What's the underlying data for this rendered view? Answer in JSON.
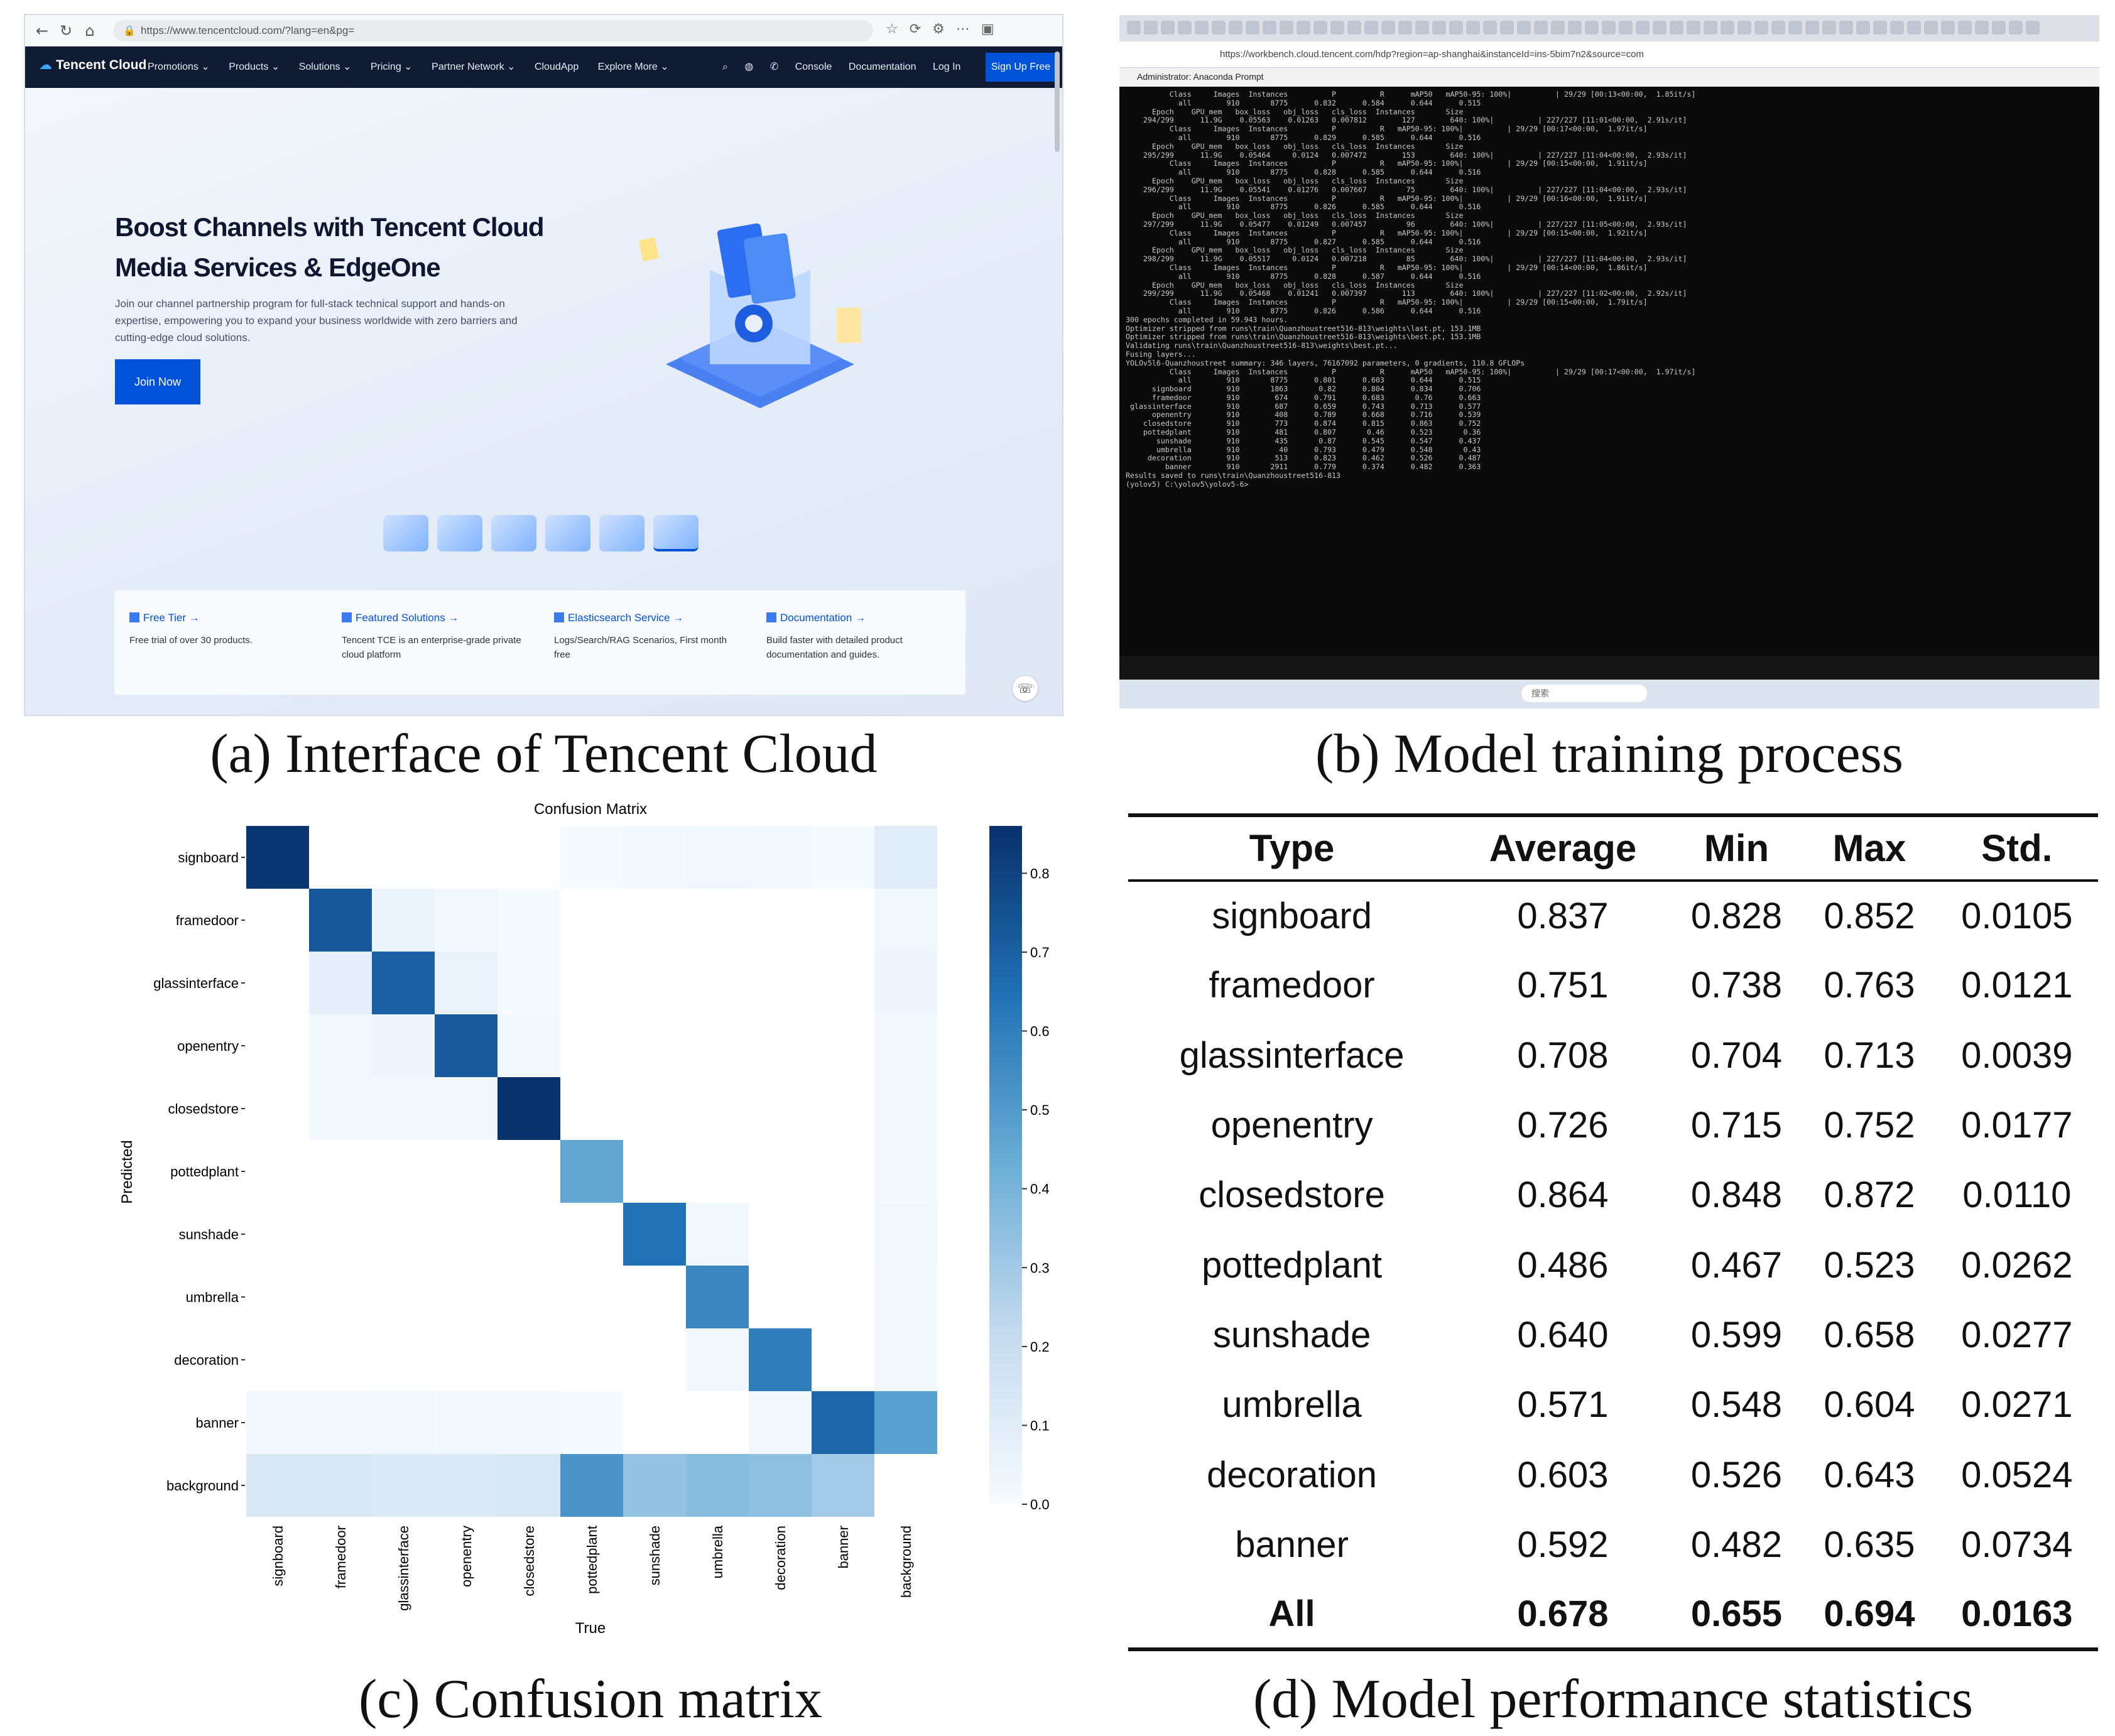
{
  "captions": {
    "a": "(a) Interface of Tencent Cloud",
    "b": "(b) Model training process",
    "c": "(c) Confusion matrix",
    "d": "(d) Model performance statistics"
  },
  "tencent": {
    "url": "https://www.tencentcloud.com/?lang=en&pg=",
    "brand": "Tencent Cloud",
    "nav": [
      "Promotions ⌄",
      "Products ⌄",
      "Solutions ⌄",
      "Pricing ⌄",
      "Partner Network ⌄",
      "CloudApp",
      "Explore More ⌄"
    ],
    "nav_right": [
      "Console",
      "Documentation",
      "Log In"
    ],
    "signup": "Sign Up Free",
    "hero_title": "Boost Channels with Tencent Cloud Media Services & EdgeOne",
    "hero_desc": "Join our channel partnership program for full-stack technical support and hands-on expertise, empowering you to expand your business worldwide with zero barriers and cutting-edge cloud solutions.",
    "join": "Join Now",
    "features": [
      {
        "title": "Free Tier →",
        "desc": "Free trial of over 30 products."
      },
      {
        "title": "Featured Solutions →",
        "desc": "Tencent TCE is an enterprise-grade private cloud platform"
      },
      {
        "title": "Elasticsearch Service →",
        "desc": "Logs/Search/RAG Scenarios, First month free"
      },
      {
        "title": "Documentation →",
        "desc": "Build faster with detailed product documentation and guides."
      }
    ]
  },
  "training": {
    "url": "https://workbench.cloud.tencent.com/hdp?region=ap-shanghai&instanceId=ins-5bim7n2&source=com",
    "window_title": "Administrator: Anaconda Prompt",
    "search_placeholder": "搜索",
    "log_lines": [
      "          Class     Images  Instances          P          R      mAP50   mAP50-95: 100%|          | 29/29 [00:13<00:00,  1.85it/s]",
      "            all        910       8775      0.832      0.584      0.644      0.515",
      "",
      "      Epoch    GPU_mem   box_loss   obj_loss   cls_loss  Instances       Size",
      "    294/299      11.9G    0.05563    0.01263   0.007812        127        640: 100%|          | 227/227 [11:01<00:00,  2.91s/it]",
      "          Class     Images  Instances          P          R   mAP50-95: 100%|          | 29/29 [00:17<00:00,  1.97it/s]",
      "            all        910       8775      0.829      0.585      0.644      0.516",
      "",
      "      Epoch    GPU_mem   box_loss   obj_loss   cls_loss  Instances       Size",
      "    295/299      11.9G    0.05464     0.0124   0.007472        153        640: 100%|          | 227/227 [11:04<00:00,  2.93s/it]",
      "          Class     Images  Instances          P          R   mAP50-95: 100%|          | 29/29 [00:15<00:00,  1.91it/s]",
      "            all        910       8775      0.828      0.585      0.644      0.516",
      "",
      "      Epoch    GPU_mem   box_loss   obj_loss   cls_loss  Instances       Size",
      "    296/299      11.9G    0.05541    0.01276   0.007667         75        640: 100%|          | 227/227 [11:04<00:00,  2.93s/it]",
      "          Class     Images  Instances          P          R   mAP50-95: 100%|          | 29/29 [00:16<00:00,  1.91it/s]",
      "            all        910       8775      0.826      0.585      0.644      0.516",
      "",
      "      Epoch    GPU_mem   box_loss   obj_loss   cls_loss  Instances       Size",
      "    297/299      11.9G    0.05477    0.01249   0.007457         96        640: 100%|          | 227/227 [11:05<00:00,  2.93s/it]",
      "          Class     Images  Instances          P          R   mAP50-95: 100%|          | 29/29 [00:15<00:00,  1.92it/s]",
      "            all        910       8775      0.827      0.585      0.644      0.516",
      "",
      "      Epoch    GPU_mem   box_loss   obj_loss   cls_loss  Instances       Size",
      "    298/299      11.9G    0.05517     0.0124   0.007218         85        640: 100%|          | 227/227 [11:04<00:00,  2.93s/it]",
      "          Class     Images  Instances          P          R   mAP50-95: 100%|          | 29/29 [00:14<00:00,  1.86it/s]",
      "            all        910       8775      0.828      0.587      0.644      0.516",
      "",
      "      Epoch    GPU_mem   box_loss   obj_loss   cls_loss  Instances       Size",
      "    299/299      11.9G    0.05468    0.01241   0.007397        113        640: 100%|          | 227/227 [11:02<00:00,  2.92s/it]",
      "          Class     Images  Instances          P          R   mAP50-95: 100%|          | 29/29 [00:15<00:00,  1.79it/s]",
      "            all        910       8775      0.826      0.586      0.644      0.516",
      "",
      "300 epochs completed in 59.943 hours.",
      "Optimizer stripped from runs\\train\\Quanzhoustreet516-813\\weights\\last.pt, 153.1MB",
      "Optimizer stripped from runs\\train\\Quanzhoustreet516-813\\weights\\best.pt, 153.1MB",
      "",
      "Validating runs\\train\\Quanzhoustreet516-813\\weights\\best.pt...",
      "Fusing layers...",
      "YOLOv5l6-Quanzhoustreet summary: 346 layers, 76167092 parameters, 0 gradients, 110.8 GFLOPs",
      "          Class     Images  Instances          P          R      mAP50   mAP50-95: 100%|          | 29/29 [00:17<00:00,  1.97it/s]",
      "            all        910       8775      0.801      0.603      0.644      0.515",
      "      signboard        910       1863       0.82      0.804      0.834      0.706",
      "      framedoor        910        674      0.791      0.683       0.76      0.663",
      " glassinterface        910        687      0.659      0.743      0.713      0.577",
      "      openentry        910        408      0.789      0.668      0.716      0.539",
      "    closedstore        910        773      0.874      0.815      0.863      0.752",
      "    pottedplant        910        481      0.807       0.46      0.523       0.36",
      "       sunshade        910        435       0.87      0.545      0.547      0.437",
      "       umbrella        910         40      0.793      0.479      0.548       0.43",
      "     decoration        910        513      0.823      0.462      0.526      0.487",
      "         banner        910       2911      0.779      0.374      0.482      0.363",
      "Results saved to runs\\train\\Quanzhoustreet516-813",
      "",
      "(yolov5) C:\\yolov5\\yolov5-6>"
    ]
  },
  "chart_data": {
    "type": "heatmap",
    "title": "Confusion Matrix",
    "xlabel": "True",
    "ylabel": "Predicted",
    "labels": [
      "signboard",
      "framedoor",
      "glassinterface",
      "openentry",
      "closedstore",
      "pottedplant",
      "sunshade",
      "umbrella",
      "decoration",
      "banner",
      "background"
    ],
    "colorbar_ticks": [
      "0.0",
      "0.1",
      "0.2",
      "0.3",
      "0.4",
      "0.5",
      "0.6",
      "0.7",
      "0.8"
    ],
    "vmin": 0.0,
    "vmax": 0.86,
    "matrix": [
      [
        0.84,
        0.0,
        0.0,
        0.0,
        0.0,
        0.01,
        0.02,
        0.03,
        0.02,
        0.01,
        0.1
      ],
      [
        0.0,
        0.73,
        0.05,
        0.02,
        0.01,
        0.0,
        0.0,
        0.0,
        0.0,
        0.0,
        0.03
      ],
      [
        0.0,
        0.08,
        0.7,
        0.06,
        0.01,
        0.0,
        0.0,
        0.0,
        0.0,
        0.0,
        0.04
      ],
      [
        0.0,
        0.02,
        0.04,
        0.72,
        0.02,
        0.0,
        0.0,
        0.0,
        0.0,
        0.0,
        0.02
      ],
      [
        0.0,
        0.02,
        0.02,
        0.02,
        0.86,
        0.0,
        0.0,
        0.0,
        0.0,
        0.0,
        0.02
      ],
      [
        0.0,
        0.0,
        0.0,
        0.0,
        0.0,
        0.46,
        0.0,
        0.0,
        0.0,
        0.0,
        0.02
      ],
      [
        0.0,
        0.0,
        0.0,
        0.0,
        0.0,
        0.0,
        0.64,
        0.03,
        0.0,
        0.0,
        0.03
      ],
      [
        0.0,
        0.0,
        0.0,
        0.0,
        0.0,
        0.0,
        0.0,
        0.57,
        0.0,
        0.0,
        0.02
      ],
      [
        0.0,
        0.0,
        0.0,
        0.0,
        0.0,
        0.0,
        0.0,
        0.02,
        0.6,
        0.0,
        0.02
      ],
      [
        0.02,
        0.02,
        0.03,
        0.02,
        0.02,
        0.01,
        0.0,
        0.0,
        0.03,
        0.68,
        0.48
      ],
      [
        0.13,
        0.13,
        0.12,
        0.12,
        0.13,
        0.52,
        0.33,
        0.36,
        0.35,
        0.3,
        0.0
      ]
    ]
  },
  "stats_table": {
    "headers": [
      "Type",
      "Average",
      "Min",
      "Max",
      "Std."
    ],
    "rows": [
      [
        "signboard",
        "0.837",
        "0.828",
        "0.852",
        "0.0105"
      ],
      [
        "framedoor",
        "0.751",
        "0.738",
        "0.763",
        "0.0121"
      ],
      [
        "glassinterface",
        "0.708",
        "0.704",
        "0.713",
        "0.0039"
      ],
      [
        "openentry",
        "0.726",
        "0.715",
        "0.752",
        "0.0177"
      ],
      [
        "closedstore",
        "0.864",
        "0.848",
        "0.872",
        "0.0110"
      ],
      [
        "pottedplant",
        "0.486",
        "0.467",
        "0.523",
        "0.0262"
      ],
      [
        "sunshade",
        "0.640",
        "0.599",
        "0.658",
        "0.0277"
      ],
      [
        "umbrella",
        "0.571",
        "0.548",
        "0.604",
        "0.0271"
      ],
      [
        "decoration",
        "0.603",
        "0.526",
        "0.643",
        "0.0524"
      ],
      [
        "banner",
        "0.592",
        "0.482",
        "0.635",
        "0.0734"
      ]
    ],
    "total": [
      "All",
      "0.678",
      "0.655",
      "0.694",
      "0.0163"
    ]
  }
}
